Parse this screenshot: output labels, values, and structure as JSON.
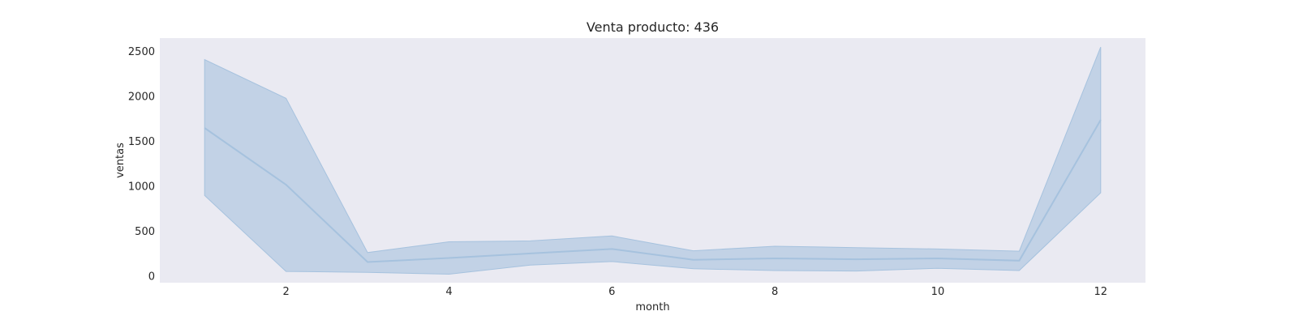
{
  "chart_data": {
    "type": "line",
    "title": "Venta producto: 436",
    "xlabel": "month",
    "ylabel": "ventas",
    "x": [
      1,
      2,
      3,
      4,
      5,
      6,
      7,
      8,
      9,
      10,
      11,
      12
    ],
    "series": [
      {
        "values": [
          1650,
          1020,
          160,
          205,
          255,
          305,
          185,
          200,
          190,
          200,
          175,
          1740
        ],
        "ci_lower": [
          900,
          55,
          45,
          25,
          125,
          165,
          85,
          65,
          60,
          90,
          65,
          930
        ],
        "ci_upper": [
          2410,
          1980,
          265,
          385,
          395,
          450,
          285,
          335,
          320,
          305,
          280,
          2550
        ]
      }
    ],
    "xlim": [
      0.45,
      12.55
    ],
    "ylim": [
      -70,
      2650
    ],
    "x_ticks": [
      2,
      4,
      6,
      8,
      10,
      12
    ],
    "y_ticks": [
      0,
      500,
      1000,
      1500,
      2000,
      2500
    ],
    "grid": false,
    "colors": {
      "line": "#a6c2de",
      "band": "#a6c2de",
      "plot_bg": "#eaeaf2"
    }
  }
}
